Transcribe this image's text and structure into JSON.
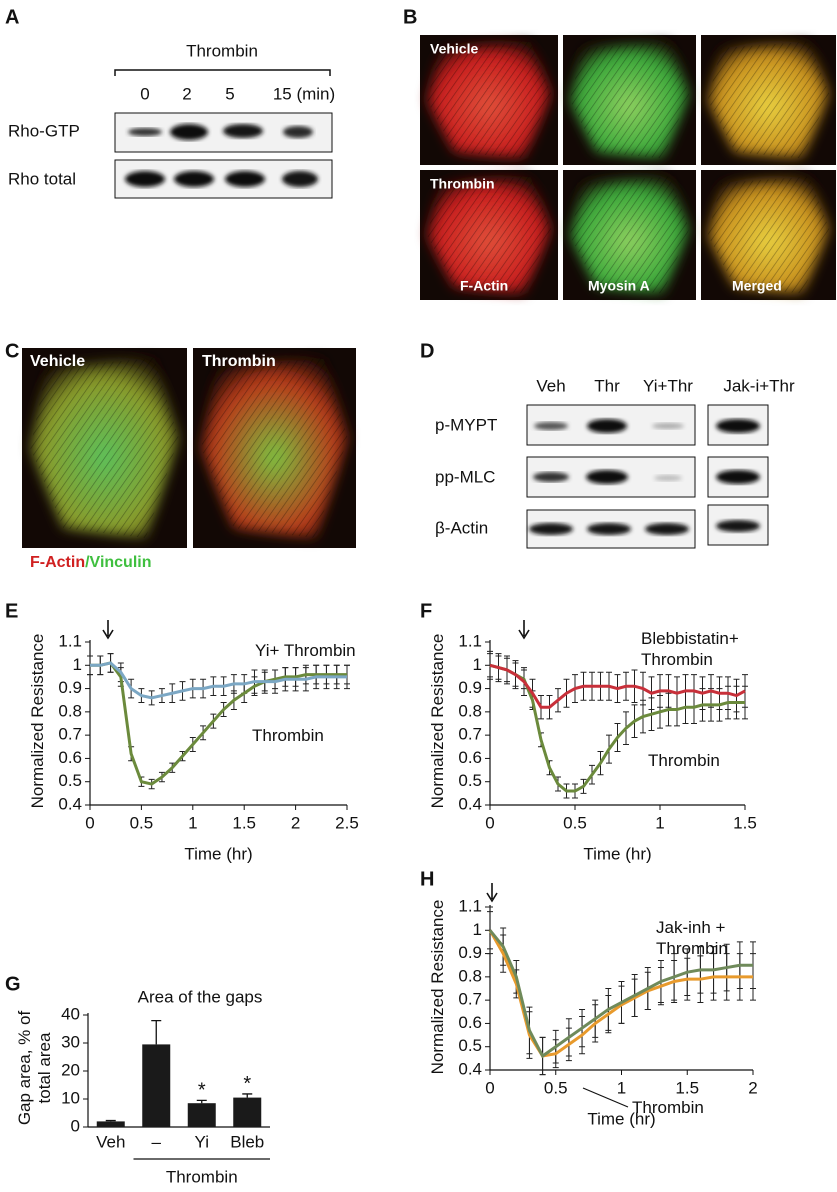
{
  "panels": {
    "A": {
      "letter": "A",
      "treatment": "Thrombin",
      "lanes": [
        "0",
        "2",
        "5",
        "15 (min)"
      ],
      "rows": [
        "Rho-GTP",
        "Rho total"
      ]
    },
    "B": {
      "letter": "B",
      "conditions": [
        "Vehicle",
        "Thrombin"
      ],
      "stains": [
        "F-Actin",
        "Myosin A",
        "Merged"
      ]
    },
    "C": {
      "letter": "C",
      "conditions": [
        "Vehicle",
        "Thrombin"
      ],
      "legend": [
        "F-Actin",
        "/Vinculin"
      ]
    },
    "D": {
      "letter": "D",
      "lanes": [
        "Veh",
        "Thr",
        "Yi+Thr",
        "Jak-i+Thr"
      ],
      "rows": [
        "p-MYPT",
        "pp-MLC",
        "β-Actin"
      ]
    }
  },
  "chart_data": [
    {
      "type": "line",
      "panel": "E",
      "xlabel": "Time (hr)",
      "ylabel": "Normalized Resistance",
      "x": [
        0,
        0.1,
        0.2,
        0.3,
        0.4,
        0.5,
        0.6,
        0.7,
        0.8,
        0.9,
        1,
        1.1,
        1.2,
        1.3,
        1.4,
        1.5,
        1.6,
        1.7,
        1.8,
        1.9,
        2,
        2.1,
        2.2,
        2.3,
        2.4,
        2.5
      ],
      "series": [
        {
          "name": "Thrombin",
          "color": "#6b8a3c",
          "values": [
            1.0,
            1.0,
            1.01,
            0.95,
            0.62,
            0.5,
            0.49,
            0.52,
            0.56,
            0.61,
            0.66,
            0.71,
            0.76,
            0.81,
            0.85,
            0.88,
            0.91,
            0.93,
            0.94,
            0.95,
            0.95,
            0.96,
            0.96,
            0.96,
            0.96,
            0.96
          ],
          "errors": [
            0.04,
            0.04,
            0.04,
            0.04,
            0.03,
            0.02,
            0.02,
            0.02,
            0.02,
            0.02,
            0.03,
            0.03,
            0.03,
            0.03,
            0.04,
            0.04,
            0.04,
            0.04,
            0.04,
            0.04,
            0.04,
            0.04,
            0.04,
            0.04,
            0.04,
            0.04
          ]
        },
        {
          "name": "Yi+ Thrombin",
          "color": "#7ba7c4",
          "values": [
            1.0,
            1.0,
            1.01,
            0.97,
            0.9,
            0.87,
            0.86,
            0.87,
            0.88,
            0.89,
            0.9,
            0.9,
            0.91,
            0.91,
            0.92,
            0.92,
            0.93,
            0.93,
            0.93,
            0.94,
            0.94,
            0.94,
            0.95,
            0.95,
            0.95,
            0.95
          ],
          "errors": [
            0.04,
            0.04,
            0.04,
            0.04,
            0.04,
            0.03,
            0.03,
            0.03,
            0.04,
            0.04,
            0.04,
            0.04,
            0.04,
            0.04,
            0.04,
            0.04,
            0.05,
            0.05,
            0.05,
            0.05,
            0.05,
            0.05,
            0.05,
            0.05,
            0.05,
            0.05
          ]
        }
      ],
      "xlim": [
        0,
        2.5
      ],
      "xticks": [
        0,
        0.5,
        1,
        1.5,
        2,
        2.5
      ],
      "ylim": [
        0.4,
        1.1
      ],
      "yticks": [
        0.4,
        0.5,
        0.6,
        0.7,
        0.8,
        0.9,
        1,
        1.1
      ]
    },
    {
      "type": "line",
      "panel": "F",
      "xlabel": "Time (hr)",
      "ylabel": "Normalized Resistance",
      "x": [
        0,
        0.05,
        0.1,
        0.15,
        0.2,
        0.25,
        0.3,
        0.35,
        0.4,
        0.45,
        0.5,
        0.55,
        0.6,
        0.65,
        0.7,
        0.75,
        0.8,
        0.85,
        0.9,
        0.95,
        1,
        1.05,
        1.1,
        1.15,
        1.2,
        1.25,
        1.3,
        1.35,
        1.4,
        1.45,
        1.5
      ],
      "series": [
        {
          "name": "Thrombin",
          "color": "#6b8a3c",
          "values": [
            1.0,
            0.99,
            0.98,
            0.96,
            0.94,
            0.85,
            0.68,
            0.56,
            0.49,
            0.46,
            0.46,
            0.48,
            0.53,
            0.58,
            0.64,
            0.69,
            0.73,
            0.76,
            0.78,
            0.79,
            0.8,
            0.81,
            0.81,
            0.82,
            0.82,
            0.83,
            0.83,
            0.83,
            0.84,
            0.84,
            0.84
          ],
          "errors": [
            0.05,
            0.05,
            0.05,
            0.05,
            0.04,
            0.04,
            0.03,
            0.03,
            0.03,
            0.03,
            0.03,
            0.03,
            0.04,
            0.05,
            0.06,
            0.06,
            0.07,
            0.07,
            0.07,
            0.07,
            0.07,
            0.07,
            0.07,
            0.07,
            0.07,
            0.07,
            0.07,
            0.07,
            0.07,
            0.07,
            0.07
          ]
        },
        {
          "name": "Blebbistatin+ Thrombin",
          "color": "#c8303a",
          "values": [
            1.0,
            0.99,
            0.98,
            0.96,
            0.93,
            0.88,
            0.82,
            0.82,
            0.85,
            0.88,
            0.9,
            0.91,
            0.91,
            0.91,
            0.91,
            0.9,
            0.91,
            0.91,
            0.9,
            0.88,
            0.89,
            0.89,
            0.88,
            0.89,
            0.89,
            0.88,
            0.89,
            0.88,
            0.88,
            0.87,
            0.89
          ],
          "errors": [
            0.06,
            0.06,
            0.06,
            0.06,
            0.06,
            0.06,
            0.05,
            0.05,
            0.05,
            0.06,
            0.06,
            0.06,
            0.06,
            0.06,
            0.06,
            0.06,
            0.06,
            0.07,
            0.07,
            0.07,
            0.07,
            0.07,
            0.07,
            0.07,
            0.07,
            0.07,
            0.07,
            0.07,
            0.07,
            0.07,
            0.07
          ]
        }
      ],
      "xlim": [
        0,
        1.5
      ],
      "xticks": [
        0,
        0.5,
        1,
        1.5
      ],
      "ylim": [
        0.4,
        1.1
      ],
      "yticks": [
        0.4,
        0.5,
        0.6,
        0.7,
        0.8,
        0.9,
        1,
        1.1
      ]
    },
    {
      "type": "bar",
      "panel": "G",
      "title": "Area of the gaps",
      "ylabel": "Gap area, % of total area",
      "categories": [
        "Veh",
        "–",
        "Yi",
        "Bleb"
      ],
      "values": [
        2,
        29.5,
        8.5,
        10.5
      ],
      "errors": [
        0.3,
        8.5,
        1,
        1.3
      ],
      "color": "#1a1a1a",
      "annotations": [
        {
          "text": "*",
          "category": "Yi"
        },
        {
          "text": "*",
          "category": "Bleb"
        }
      ],
      "group": {
        "label": "Thrombin",
        "from": "–",
        "to": "Bleb"
      },
      "ylim": [
        0,
        40
      ],
      "yticks": [
        0,
        10,
        20,
        30,
        40
      ]
    },
    {
      "type": "line",
      "panel": "H",
      "xlabel": "Time (hr)",
      "ylabel": "Normalized Resistance",
      "x": [
        0,
        0.1,
        0.2,
        0.3,
        0.4,
        0.5,
        0.6,
        0.7,
        0.8,
        0.9,
        1,
        1.1,
        1.2,
        1.3,
        1.4,
        1.5,
        1.6,
        1.7,
        1.8,
        1.9,
        2
      ],
      "series": [
        {
          "name": "Thrombin",
          "color": "#e89a2c",
          "values": [
            1.0,
            0.9,
            0.77,
            0.55,
            0.46,
            0.47,
            0.51,
            0.55,
            0.6,
            0.64,
            0.68,
            0.71,
            0.74,
            0.76,
            0.78,
            0.79,
            0.79,
            0.8,
            0.8,
            0.8,
            0.8
          ],
          "errors": [
            0.08,
            0.08,
            0.06,
            0.1,
            0.08,
            0.06,
            0.07,
            0.08,
            0.08,
            0.08,
            0.08,
            0.08,
            0.08,
            0.08,
            0.09,
            0.09,
            0.1,
            0.1,
            0.1,
            0.1,
            0.1
          ]
        },
        {
          "name": "Jak-inh + Thrombin",
          "color": "#6f8a5a",
          "values": [
            1.0,
            0.93,
            0.8,
            0.57,
            0.46,
            0.5,
            0.54,
            0.58,
            0.62,
            0.66,
            0.69,
            0.72,
            0.75,
            0.78,
            0.8,
            0.82,
            0.83,
            0.83,
            0.84,
            0.85,
            0.85
          ],
          "errors": [
            0.1,
            0.08,
            0.07,
            0.1,
            0.08,
            0.07,
            0.08,
            0.08,
            0.08,
            0.09,
            0.09,
            0.09,
            0.09,
            0.09,
            0.1,
            0.1,
            0.1,
            0.1,
            0.1,
            0.1,
            0.1
          ]
        }
      ],
      "xlim": [
        0,
        2
      ],
      "xticks": [
        0,
        0.5,
        1,
        1.5,
        2
      ],
      "ylim": [
        0.4,
        1.1
      ],
      "yticks": [
        0.4,
        0.5,
        0.6,
        0.7,
        0.8,
        0.9,
        1,
        1.1
      ]
    }
  ]
}
